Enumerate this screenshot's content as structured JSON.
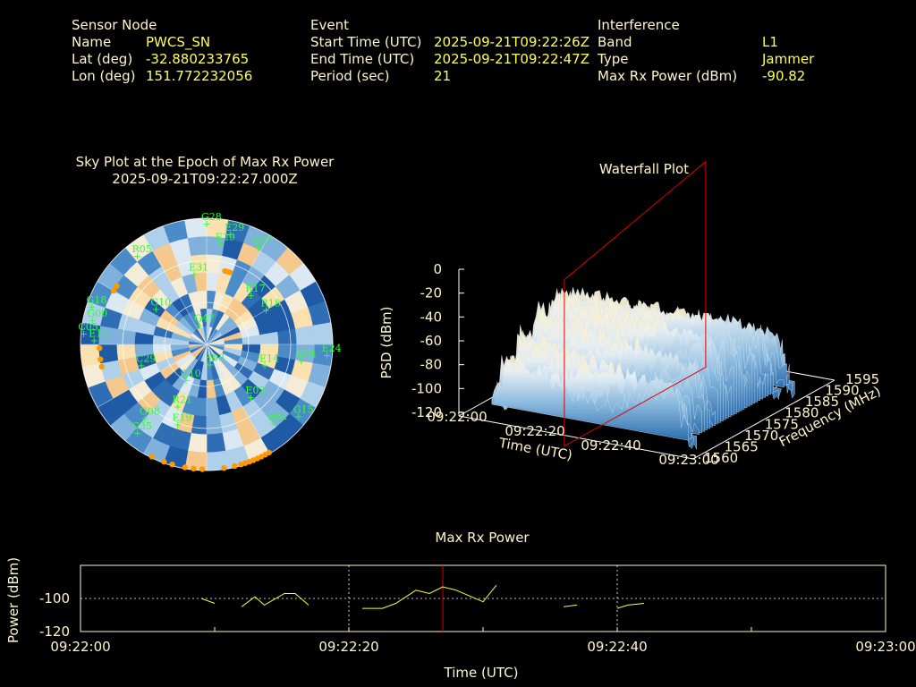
{
  "header": {
    "sensor": {
      "section": "Sensor Node",
      "name_label": "Name",
      "name_value": "PWCS_SN",
      "lat_label": "Lat (deg)",
      "lat_value": "-32.880233765",
      "lon_label": "Lon (deg)",
      "lon_value": "151.772232056"
    },
    "event": {
      "section": "Event",
      "start_label": "Start Time (UTC)",
      "start_value": "2025-09-21T09:22:26Z",
      "end_label": "End Time (UTC)",
      "end_value": "2025-09-21T09:22:47Z",
      "period_label": "Period (sec)",
      "period_value": "21"
    },
    "interference": {
      "section": "Interference",
      "band_label": "Band",
      "band_value": "L1",
      "type_label": "Type",
      "type_value": "Jammer",
      "power_label": "Max Rx Power (dBm)",
      "power_value": "-90.82"
    }
  },
  "colors": {
    "background": "#000000",
    "text": "#fff5cc",
    "value": "#ffff55",
    "satellite": "#33ff33",
    "marker": "#ff9900",
    "cursor": "#dd0000",
    "trace": "#ffff33",
    "grid": "#ffffff"
  },
  "chart_data": [
    {
      "type": "scatter",
      "title": "Sky Plot at the Epoch of Max Rx Power",
      "subtitle": "2025-09-21T09:22:27.000Z",
      "satellites": [
        {
          "id": "G28",
          "az": 0,
          "el": 88
        },
        {
          "id": "E29",
          "az": 12,
          "el": 82
        },
        {
          "id": "E29",
          "az": 8,
          "el": 74
        },
        {
          "id": "G27",
          "az": 28,
          "el": 80
        },
        {
          "id": "R05",
          "az": -38,
          "el": 82
        },
        {
          "id": "E31",
          "az": -10,
          "el": 52
        },
        {
          "id": "R17",
          "az": 42,
          "el": 48
        },
        {
          "id": "E13",
          "az": -88,
          "el": 82
        },
        {
          "id": "G18",
          "az": -72,
          "el": 88
        },
        {
          "id": "G00",
          "az": -78,
          "el": 85
        },
        {
          "id": "C05",
          "az": -85,
          "el": 90
        },
        {
          "id": "G10",
          "az": -55,
          "el": 45
        },
        {
          "id": "R18",
          "az": 60,
          "el": 50
        },
        {
          "id": "G47",
          "az": -20,
          "el": 15
        },
        {
          "id": "C29",
          "az": -108,
          "el": 50
        },
        {
          "id": "E24",
          "az": 95,
          "el": 88
        },
        {
          "id": "G24",
          "az": 100,
          "el": 70
        },
        {
          "id": "E14",
          "az": 110,
          "el": 45
        },
        {
          "id": "R03",
          "az": 170,
          "el": 15
        },
        {
          "id": "G10",
          "az": -150,
          "el": 30
        },
        {
          "id": "E03",
          "az": 140,
          "el": 50
        },
        {
          "id": "G08",
          "az": -140,
          "el": 70
        },
        {
          "id": "R21",
          "az": -155,
          "el": 50
        },
        {
          "id": "E19",
          "az": -160,
          "el": 62
        },
        {
          "id": "C35",
          "az": -142,
          "el": 82
        },
        {
          "id": "R02",
          "az": 140,
          "el": 75
        },
        {
          "id": "G15",
          "az": 128,
          "el": 85
        }
      ],
      "markers_note": "orange markers",
      "marker_count": 24
    },
    {
      "type": "area",
      "title": "Waterfall Plot",
      "xlabel": "Time (UTC)",
      "ylabel": "Frequency (MHz)",
      "zlabel": "PSD (dBm)",
      "x_ticks": [
        "09:22:00",
        "09:22:20",
        "09:22:40",
        "09:23:00"
      ],
      "y_ticks": [
        "1560",
        "1565",
        "1570",
        "1575",
        "1580",
        "1585",
        "1590",
        "1595"
      ],
      "z_ticks": [
        "0",
        "-20",
        "-40",
        "-60",
        "-80",
        "-100",
        "-120"
      ],
      "zlim": [
        -120,
        0
      ],
      "surface_time_range": [
        "09:22:05",
        "09:22:55"
      ],
      "surface_freq_range": [
        1565,
        1590
      ],
      "surface_psd_range": [
        -105,
        -15
      ],
      "cursor_time": "09:22:27"
    },
    {
      "type": "line",
      "title": "Max Rx Power",
      "xlabel": "Time (UTC)",
      "ylabel": "Power (dBm)",
      "x_ticks": [
        "09:22:00",
        "09:22:20",
        "09:22:40",
        "09:23:00"
      ],
      "y_ticks": [
        "-100",
        "-120"
      ],
      "ylim": [
        -120,
        -80
      ],
      "cursor_time": "09:22:27",
      "series": [
        {
          "points": [
            [
              9,
              -100
            ],
            [
              10,
              -103
            ]
          ]
        },
        {
          "points": [
            [
              12,
              -105
            ],
            [
              13,
              -99
            ],
            [
              13.7,
              -104
            ],
            [
              15.2,
              -97
            ],
            [
              16,
              -97
            ],
            [
              17,
              -104
            ]
          ]
        },
        {
          "points": [
            [
              21,
              -106
            ],
            [
              22.5,
              -106
            ],
            [
              23.5,
              -103
            ],
            [
              25,
              -95
            ],
            [
              26,
              -97
            ],
            [
              27,
              -93
            ],
            [
              28,
              -95
            ],
            [
              30,
              -102
            ],
            [
              31,
              -92
            ]
          ]
        },
        {
          "points": [
            [
              36,
              -105
            ],
            [
              37,
              -104
            ]
          ]
        },
        {
          "points": [
            [
              40,
              -106
            ],
            [
              40.8,
              -104
            ],
            [
              42,
              -103
            ]
          ]
        }
      ]
    }
  ]
}
